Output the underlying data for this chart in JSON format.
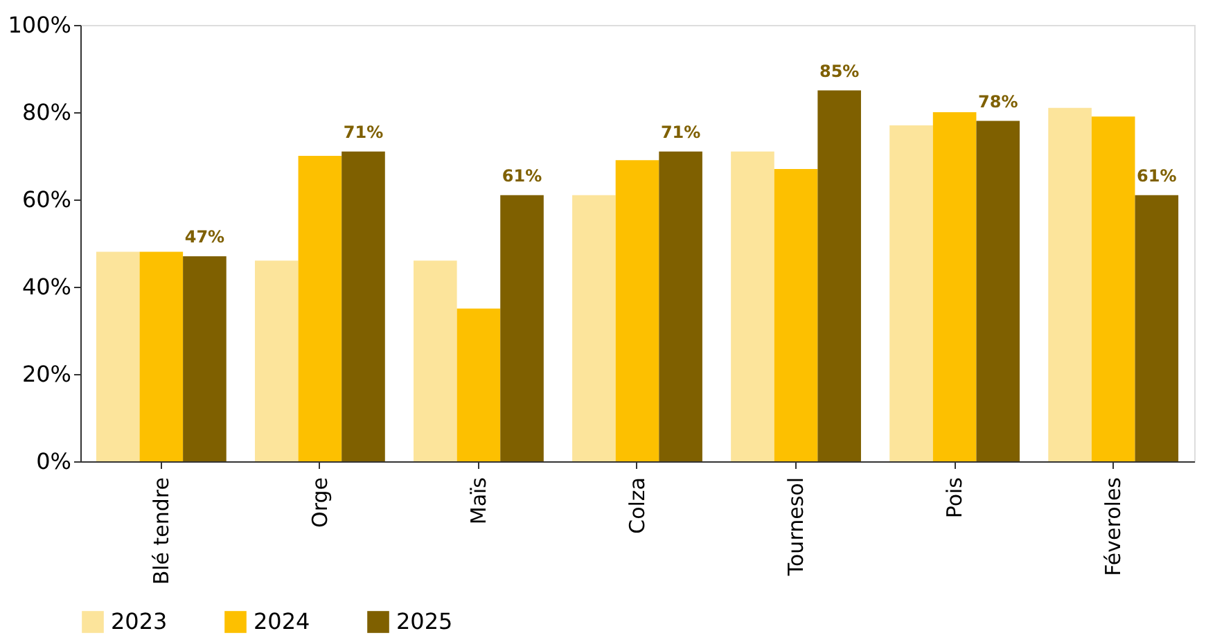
{
  "chart_data": {
    "type": "bar",
    "categories": [
      "Blé tendre",
      "Orge",
      "Maïs",
      "Colza",
      "Tournesol",
      "Pois",
      "Féveroles"
    ],
    "series": [
      {
        "name": "2023",
        "color": "#fce49b",
        "values": [
          48,
          46,
          46,
          61,
          71,
          77,
          81
        ]
      },
      {
        "name": "2024",
        "color": "#fdc000",
        "values": [
          48,
          70,
          35,
          69,
          67,
          80,
          79
        ]
      },
      {
        "name": "2025",
        "color": "#7f6000",
        "values": [
          47,
          71,
          61,
          71,
          85,
          78,
          61
        ],
        "value_labels": [
          "47%",
          "71%",
          "61%",
          "71%",
          "85%",
          "78%",
          "61%"
        ]
      }
    ],
    "ylim": [
      0,
      100
    ],
    "yticks": [
      {
        "value": 0,
        "label": "0%"
      },
      {
        "value": 20,
        "label": "20%"
      },
      {
        "value": 40,
        "label": "40%"
      },
      {
        "value": 60,
        "label": "60%"
      },
      {
        "value": 80,
        "label": "80%"
      },
      {
        "value": 100,
        "label": "100%"
      }
    ],
    "grid": false,
    "legend": "bottom"
  }
}
